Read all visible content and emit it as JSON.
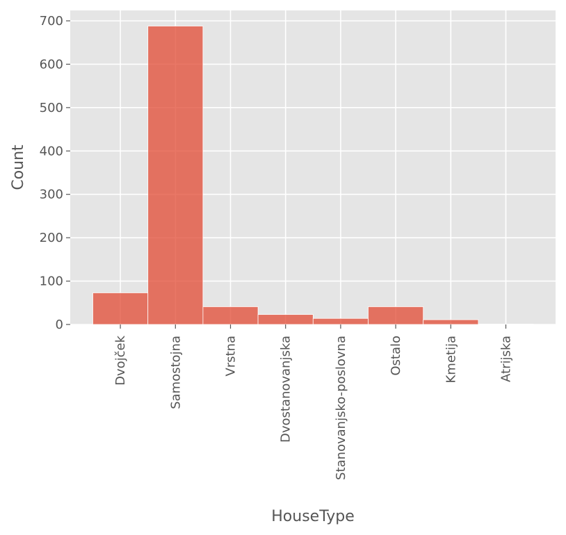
{
  "chart_data": {
    "type": "bar",
    "title": "",
    "xlabel": "HouseType",
    "ylabel": "Count",
    "categories": [
      "Dvojček",
      "Samostojna",
      "Vrstna",
      "Dvostanovanjska",
      "Stanovanjsko-poslovna",
      "Ostalo",
      "Kmetija",
      "Atrijska"
    ],
    "values": [
      73,
      688,
      41,
      23,
      14,
      41,
      11,
      1
    ],
    "ylim": [
      0,
      700
    ],
    "yticks": [
      0,
      100,
      200,
      300,
      400,
      500,
      600,
      700
    ],
    "grid": true,
    "colors": {
      "bar": "#e24a33",
      "background": "#e5e5e5",
      "grid": "#ffffff"
    }
  }
}
